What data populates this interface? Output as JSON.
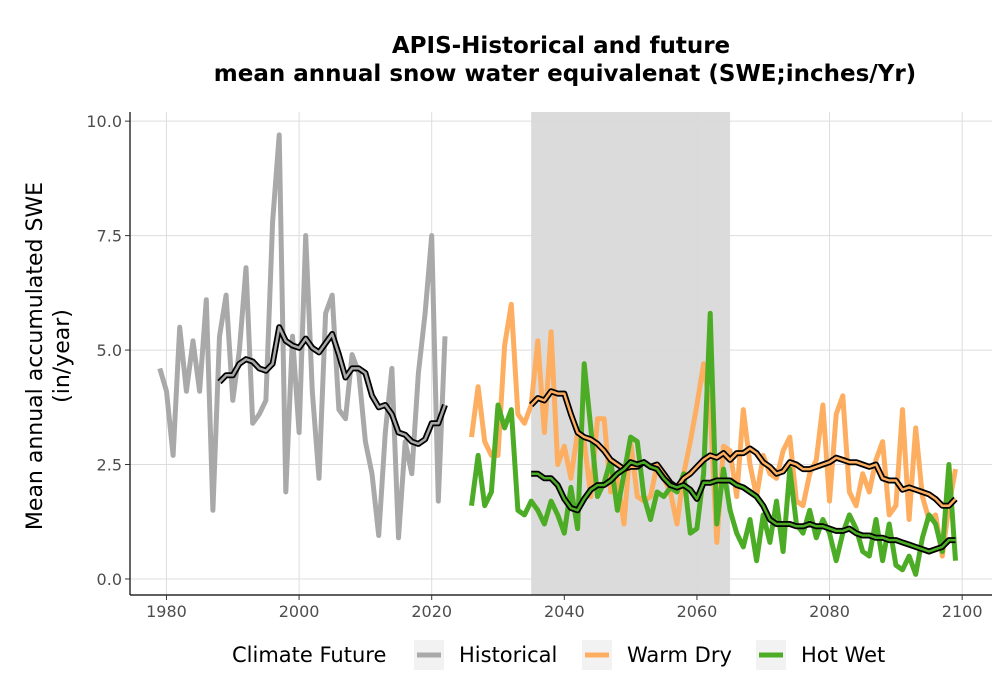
{
  "chart_data": {
    "type": "line",
    "title_line1": "APIS-Historical and future",
    "title_line2": "mean annual snow water equivalenat (SWE;inches/Yr)",
    "ylabel_line1": "Mean annual accumulated SWE",
    "ylabel_line2": "(in/year)",
    "xlim": [
      1974.5,
      2104.5
    ],
    "ylim": [
      -0.35,
      10.2
    ],
    "x_ticks": [
      1980,
      2000,
      2020,
      2040,
      2060,
      2080,
      2100
    ],
    "x_tick_labels": [
      "1980",
      "2000",
      "2020",
      "2040",
      "2060",
      "2080",
      "2100"
    ],
    "y_ticks": [
      0,
      2.5,
      5,
      7.5,
      10
    ],
    "y_tick_labels": [
      "0.0",
      "2.5",
      "5.0",
      "7.5",
      "10.0"
    ],
    "shaded_period": [
      2035,
      2065
    ],
    "legend_title": "Climate Future",
    "legend_position": "bottom",
    "series": [
      {
        "name": "Historical",
        "color": "#a9a9a9",
        "x": [
          1979,
          1980,
          1981,
          1982,
          1983,
          1984,
          1985,
          1986,
          1987,
          1988,
          1989,
          1990,
          1991,
          1992,
          1993,
          1994,
          1995,
          1996,
          1997,
          1998,
          1999,
          2000,
          2001,
          2002,
          2003,
          2004,
          2005,
          2006,
          2007,
          2008,
          2009,
          2010,
          2011,
          2012,
          2013,
          2014,
          2015,
          2016,
          2017,
          2018,
          2019,
          2020,
          2021,
          2022
        ],
        "values": [
          4.6,
          4.1,
          2.7,
          5.5,
          4.1,
          5.2,
          4.1,
          6.1,
          1.5,
          5.3,
          6.2,
          3.9,
          5.0,
          6.8,
          3.4,
          3.6,
          3.9,
          7.8,
          9.7,
          1.9,
          5.3,
          3.2,
          7.5,
          4.1,
          2.2,
          5.8,
          6.2,
          3.7,
          3.5,
          4.9,
          4.5,
          3.0,
          2.3,
          0.95,
          3.2,
          4.6,
          0.9,
          3.0,
          2.3,
          4.5,
          5.8,
          7.5,
          1.7,
          5.3
        ]
      },
      {
        "name": "Warm Dry",
        "color": "#fdae61",
        "x": [
          2026,
          2027,
          2028,
          2029,
          2030,
          2031,
          2032,
          2033,
          2034,
          2035,
          2036,
          2037,
          2038,
          2039,
          2040,
          2041,
          2042,
          2043,
          2044,
          2045,
          2046,
          2047,
          2048,
          2049,
          2050,
          2051,
          2052,
          2053,
          2054,
          2055,
          2056,
          2057,
          2058,
          2059,
          2060,
          2061,
          2062,
          2063,
          2064,
          2065,
          2066,
          2067,
          2068,
          2069,
          2070,
          2071,
          2072,
          2073,
          2074,
          2075,
          2076,
          2077,
          2078,
          2079,
          2080,
          2081,
          2082,
          2083,
          2084,
          2085,
          2086,
          2087,
          2088,
          2089,
          2090,
          2091,
          2092,
          2093,
          2094,
          2095,
          2096,
          2097,
          2098,
          2099
        ],
        "values": [
          3.1,
          4.2,
          3.0,
          2.7,
          2.7,
          5.1,
          6.0,
          3.6,
          3.4,
          3.8,
          5.2,
          3.2,
          5.4,
          2.5,
          2.9,
          2.2,
          3.2,
          3.0,
          1.8,
          3.5,
          3.5,
          1.9,
          2.2,
          1.2,
          3.0,
          1.8,
          1.7,
          1.8,
          2.5,
          2.2,
          1.9,
          1.2,
          2.3,
          3.0,
          3.8,
          4.7,
          3.7,
          0.8,
          2.9,
          2.8,
          1.8,
          3.7,
          2.5,
          1.8,
          2.7,
          2.3,
          2.2,
          2.8,
          3.1,
          1.7,
          1.6,
          2.3,
          2.6,
          3.8,
          1.7,
          3.6,
          4.0,
          1.9,
          1.6,
          2.3,
          1.9,
          2.6,
          3.0,
          1.4,
          1.6,
          3.7,
          1.3,
          3.3,
          1.8,
          1.3,
          1.4,
          0.5,
          1.6,
          2.4
        ]
      },
      {
        "name": "Hot Wet",
        "color": "#4dac26",
        "x": [
          2026,
          2027,
          2028,
          2029,
          2030,
          2031,
          2032,
          2033,
          2034,
          2035,
          2036,
          2037,
          2038,
          2039,
          2040,
          2041,
          2042,
          2043,
          2044,
          2045,
          2046,
          2047,
          2048,
          2049,
          2050,
          2051,
          2052,
          2053,
          2054,
          2055,
          2056,
          2057,
          2058,
          2059,
          2060,
          2061,
          2062,
          2063,
          2064,
          2065,
          2066,
          2067,
          2068,
          2069,
          2070,
          2071,
          2072,
          2073,
          2074,
          2075,
          2076,
          2077,
          2078,
          2079,
          2080,
          2081,
          2082,
          2083,
          2084,
          2085,
          2086,
          2087,
          2088,
          2089,
          2090,
          2091,
          2092,
          2093,
          2094,
          2095,
          2096,
          2097,
          2098,
          2099
        ],
        "values": [
          1.6,
          2.7,
          1.6,
          1.9,
          3.8,
          3.3,
          3.7,
          1.5,
          1.4,
          1.7,
          1.5,
          1.2,
          1.7,
          1.4,
          1.0,
          2.0,
          1.1,
          4.7,
          3.3,
          1.8,
          2.1,
          2.6,
          1.5,
          2.3,
          3.1,
          3.0,
          1.8,
          1.3,
          1.9,
          1.8,
          2.0,
          1.9,
          2.3,
          1.0,
          1.1,
          2.3,
          5.8,
          1.2,
          2.4,
          1.5,
          1.0,
          0.7,
          1.3,
          0.4,
          1.4,
          0.8,
          1.7,
          0.6,
          2.4,
          1.2,
          1.0,
          1.5,
          0.9,
          1.3,
          1.0,
          0.4,
          1.0,
          1.4,
          1.1,
          0.6,
          0.5,
          1.3,
          0.4,
          1.2,
          0.3,
          0.2,
          0.5,
          0.1,
          0.9,
          1.4,
          1.2,
          0.6,
          2.5,
          0.4
        ]
      }
    ],
    "smoothed": [
      {
        "name": "Historical",
        "color": "#a9a9a9",
        "x": [
          1988,
          1989,
          1990,
          1991,
          1992,
          1993,
          1994,
          1995,
          1996,
          1997,
          1998,
          1999,
          2000,
          2001,
          2002,
          2003,
          2004,
          2005,
          2006,
          2007,
          2008,
          2009,
          2010,
          2011,
          2012,
          2013,
          2014,
          2015,
          2016,
          2017,
          2018,
          2019,
          2020,
          2021,
          2022
        ],
        "values": [
          4.3,
          4.45,
          4.45,
          4.7,
          4.8,
          4.75,
          4.6,
          4.55,
          4.7,
          5.5,
          5.2,
          5.1,
          5.05,
          5.25,
          5.05,
          4.95,
          5.15,
          5.35,
          4.9,
          4.4,
          4.6,
          4.6,
          4.5,
          4.0,
          3.75,
          3.8,
          3.6,
          3.2,
          3.15,
          3.0,
          2.95,
          3.05,
          3.4,
          3.4,
          3.8
        ]
      },
      {
        "name": "Warm Dry",
        "color": "#fdae61",
        "x": [
          2035,
          2036,
          2037,
          2038,
          2039,
          2040,
          2041,
          2042,
          2043,
          2044,
          2045,
          2046,
          2047,
          2048,
          2049,
          2050,
          2051,
          2052,
          2053,
          2054,
          2055,
          2056,
          2057,
          2058,
          2059,
          2060,
          2061,
          2062,
          2063,
          2064,
          2065,
          2066,
          2067,
          2068,
          2069,
          2070,
          2071,
          2072,
          2073,
          2074,
          2075,
          2076,
          2077,
          2078,
          2079,
          2080,
          2081,
          2082,
          2083,
          2084,
          2085,
          2086,
          2087,
          2088,
          2089,
          2090,
          2091,
          2092,
          2093,
          2094,
          2095,
          2096,
          2097,
          2098,
          2099
        ],
        "values": [
          3.8,
          3.95,
          3.9,
          4.1,
          4.05,
          4.05,
          3.6,
          3.2,
          3.1,
          3.05,
          2.95,
          2.8,
          2.6,
          2.5,
          2.4,
          2.45,
          2.45,
          2.55,
          2.45,
          2.5,
          2.3,
          2.1,
          2.0,
          2.2,
          2.3,
          2.45,
          2.6,
          2.7,
          2.65,
          2.75,
          2.6,
          2.75,
          2.75,
          2.85,
          2.75,
          2.55,
          2.45,
          2.3,
          2.35,
          2.55,
          2.5,
          2.4,
          2.4,
          2.45,
          2.5,
          2.55,
          2.65,
          2.6,
          2.55,
          2.55,
          2.5,
          2.45,
          2.5,
          2.2,
          2.15,
          2.15,
          1.95,
          2.0,
          1.95,
          1.9,
          1.85,
          1.75,
          1.6,
          1.6,
          1.75
        ]
      },
      {
        "name": "Hot Wet",
        "color": "#4dac26",
        "x": [
          2035,
          2036,
          2037,
          2038,
          2039,
          2040,
          2041,
          2042,
          2043,
          2044,
          2045,
          2046,
          2047,
          2048,
          2049,
          2050,
          2051,
          2052,
          2053,
          2054,
          2055,
          2056,
          2057,
          2058,
          2059,
          2060,
          2061,
          2062,
          2063,
          2064,
          2065,
          2066,
          2067,
          2068,
          2069,
          2070,
          2071,
          2072,
          2073,
          2074,
          2075,
          2076,
          2077,
          2078,
          2079,
          2080,
          2081,
          2082,
          2083,
          2084,
          2085,
          2086,
          2087,
          2088,
          2089,
          2090,
          2091,
          2092,
          2093,
          2094,
          2095,
          2096,
          2097,
          2098,
          2099
        ],
        "values": [
          2.3,
          2.3,
          2.2,
          2.2,
          2.05,
          1.75,
          1.55,
          1.5,
          1.75,
          1.95,
          2.05,
          2.05,
          2.15,
          2.3,
          2.4,
          2.55,
          2.5,
          2.55,
          2.45,
          2.4,
          2.2,
          2.05,
          2.0,
          2.05,
          1.95,
          1.75,
          2.1,
          2.1,
          2.15,
          2.15,
          2.15,
          2.05,
          2.0,
          1.9,
          1.8,
          1.6,
          1.3,
          1.2,
          1.2,
          1.2,
          1.15,
          1.15,
          1.2,
          1.15,
          1.15,
          1.1,
          1.05,
          1.05,
          1.1,
          1.0,
          0.95,
          0.95,
          0.9,
          0.9,
          0.85,
          0.85,
          0.8,
          0.75,
          0.7,
          0.65,
          0.6,
          0.65,
          0.7,
          0.85,
          0.85
        ]
      }
    ]
  }
}
